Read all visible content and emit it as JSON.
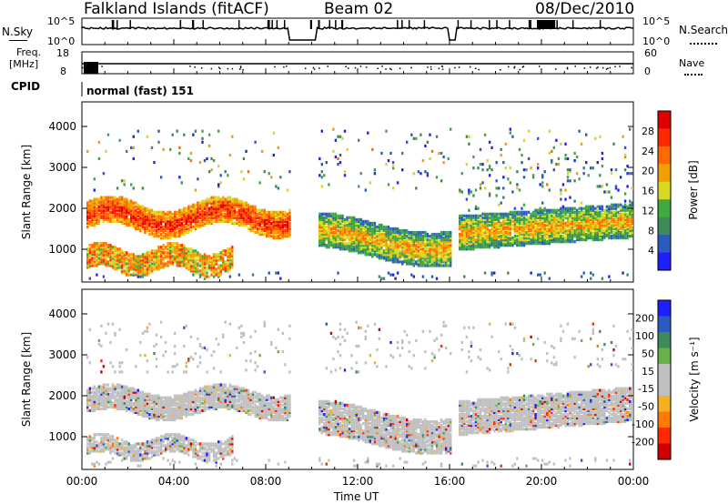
{
  "header": {
    "station": "Falkland Islands (fitACF)",
    "beam": "Beam 02",
    "date": "08/Dec/2010"
  },
  "nsky_panel": {
    "left_label": "N.Sky",
    "right_label": "N.Search",
    "left_ticks": [
      "10^5",
      "10^0"
    ],
    "right_ticks": [
      "10^5",
      "10^0"
    ]
  },
  "freq_panel": {
    "left_label_1": "Freq.",
    "left_label_2": "[MHz]",
    "right_label": "Nave",
    "left_ticks": [
      "18",
      "8"
    ],
    "right_ticks": [
      "60",
      "0"
    ]
  },
  "cpid_panel": {
    "label": "CPID",
    "mode": "normal (fast) 151"
  },
  "time_axis": {
    "label": "Time UT",
    "ticks": [
      "00:00",
      "04:00",
      "08:00",
      "12:00",
      "16:00",
      "20:00",
      "00:00"
    ]
  },
  "colors": {
    "power_scale": [
      "#1e1eff",
      "#2b5bc0",
      "#3d8a5a",
      "#3faa3f",
      "#d8d820",
      "#f0a000",
      "#ff6a00",
      "#ff2a00",
      "#e00000"
    ],
    "velocity_scale": [
      "#d00000",
      "#ff2a00",
      "#ff7a00",
      "#f5b020",
      "#bfbfbf",
      "#bfbfbf",
      "#6ab04a",
      "#3d8a5a",
      "#2b5bc0",
      "#1e1eff"
    ]
  },
  "chart_data": [
    {
      "type": "heatmap",
      "title": "",
      "xlabel": "Time UT",
      "ylabel": "Slant Range [km]",
      "yticks": [
        1000,
        2000,
        3000,
        4000
      ],
      "ylim": [
        200,
        4600
      ],
      "xlim": [
        0,
        24
      ],
      "colorbar": {
        "label": "Power [dB]",
        "ticks": [
          4,
          8,
          12,
          16,
          20,
          24,
          28
        ]
      },
      "data_gaps_hours": [
        [
          9.0,
          10.2
        ],
        [
          16.0,
          16.3
        ]
      ],
      "bands": [
        {
          "t": [
            0.3,
            9.0
          ],
          "range_km": [
            1300,
            2200
          ],
          "level": "high"
        },
        {
          "t": [
            0.3,
            6.5
          ],
          "range_km": [
            400,
            1100
          ],
          "level": "high"
        },
        {
          "t": [
            10.2,
            16.0
          ],
          "range_km": [
            800,
            2100
          ],
          "level": "medium"
        },
        {
          "t": [
            16.3,
            24.0
          ],
          "range_km": [
            900,
            2200
          ],
          "level": "medium"
        },
        {
          "t": [
            0.5,
            8.5
          ],
          "range_km": [
            2500,
            3800
          ],
          "level": "sparse"
        }
      ]
    },
    {
      "type": "heatmap",
      "title": "",
      "xlabel": "Time UT",
      "ylabel": "Slant Range [km]",
      "yticks": [
        1000,
        2000,
        3000,
        4000
      ],
      "ylim": [
        200,
        4600
      ],
      "xlim": [
        0,
        24
      ],
      "colorbar": {
        "label": "Velocity [m s⁻¹]",
        "ticks": [
          200,
          100,
          50,
          15,
          -15,
          -50,
          -100,
          -200
        ]
      },
      "data_gaps_hours": [
        [
          9.0,
          10.2
        ],
        [
          16.0,
          16.3
        ]
      ],
      "dominant": "ground scatter (grey)"
    }
  ]
}
